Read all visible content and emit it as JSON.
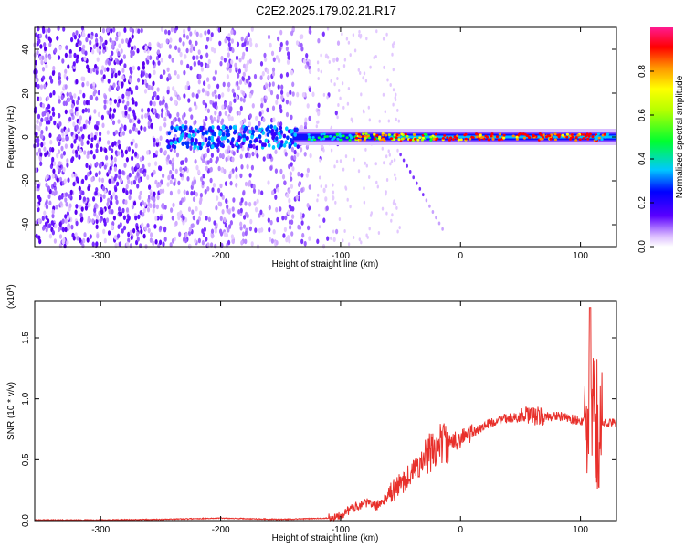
{
  "title": "C2E2.2025.179.02.21.R17",
  "chart_data": [
    {
      "type": "heatmap",
      "xlabel": "Height of straight line (km)",
      "ylabel": "Frequency (Hz)",
      "xlim": [
        -355,
        130
      ],
      "ylim": [
        -50,
        50
      ],
      "xticks": [
        -300,
        -200,
        -100,
        0,
        100
      ],
      "yticks": [
        -40,
        -20,
        0,
        20,
        40
      ],
      "colorbar": {
        "label": "Normalized spectral amplitude",
        "range": [
          0,
          1
        ],
        "ticks": [
          0.0,
          0.2,
          0.4,
          0.6,
          0.8
        ]
      },
      "features": {
        "noise_region_x": [
          -355,
          -120
        ],
        "carrier_line_x": [
          -140,
          130
        ],
        "carrier_frequency": 0
      }
    },
    {
      "type": "line",
      "xlabel": "Height of straight line (km)",
      "ylabel": "SNR (10 * v/v)",
      "exponent_label": "(x10",
      "exponent_power": "4",
      "exponent_close": ")",
      "xlim": [
        -355,
        130
      ],
      "ylim": [
        0,
        1.8
      ],
      "xticks": [
        -300,
        -200,
        -100,
        0,
        100
      ],
      "yticks": [
        0.0,
        0.5,
        1.0,
        1.5
      ],
      "series": [
        {
          "color": "#e8302b",
          "x": [
            -355,
            -300,
            -250,
            -200,
            -150,
            -110,
            -100,
            -90,
            -80,
            -70,
            -60,
            -50,
            -40,
            -30,
            -20,
            -15,
            -10,
            0,
            10,
            20,
            30,
            40,
            50,
            60,
            70,
            80,
            90,
            100,
            105,
            110,
            115,
            120,
            130
          ],
          "y": [
            0.005,
            0.005,
            0.01,
            0.02,
            0.01,
            0.02,
            0.05,
            0.1,
            0.15,
            0.12,
            0.2,
            0.3,
            0.4,
            0.5,
            0.6,
            0.65,
            0.62,
            0.68,
            0.72,
            0.78,
            0.82,
            0.84,
            0.85,
            0.86,
            0.85,
            0.86,
            0.84,
            0.82,
            0.8,
            0.85,
            0.78,
            0.8,
            0.8
          ]
        }
      ]
    }
  ]
}
